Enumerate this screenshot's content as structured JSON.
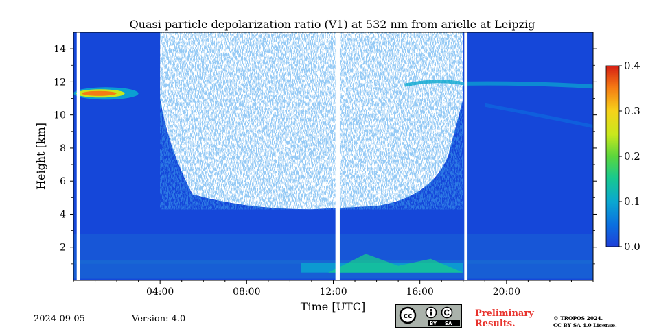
{
  "chart_data": {
    "type": "heatmap",
    "title": "Quasi particle depolarization ratio (V1) at 532 nm from arielle at Leipzig",
    "xlabel": "Time [UTC]",
    "ylabel": "Height [km]",
    "x_range_hours": [
      0,
      24
    ],
    "ylim": [
      0,
      15
    ],
    "x_ticks": [
      {
        "hour": 4,
        "label": "04:00"
      },
      {
        "hour": 8,
        "label": "08:00"
      },
      {
        "hour": 12,
        "label": "12:00"
      },
      {
        "hour": 16,
        "label": "16:00"
      },
      {
        "hour": 20,
        "label": "20:00"
      }
    ],
    "y_ticks": [
      2,
      4,
      6,
      8,
      10,
      12,
      14
    ],
    "colorbar": {
      "vmin": 0.0,
      "vmax": 0.4,
      "ticks": [
        "0.0",
        "0.1",
        "0.2",
        "0.3",
        "0.4"
      ],
      "colormap": [
        "#1f3fd8",
        "#0b6fe0",
        "#0aa8d0",
        "#17c98f",
        "#5bd63c",
        "#c8e81d",
        "#f6d21a",
        "#f57b14",
        "#d61f14"
      ]
    },
    "background_value": 0.02,
    "no_data_gaps_hours": [
      [
        0.15,
        0.3
      ],
      [
        12.1,
        12.3
      ],
      [
        18.05,
        18.2
      ]
    ],
    "no_signal_region": {
      "start_hour": 4.0,
      "end_hour": 18.0,
      "bottom_km_min": 4.3,
      "top_km": 15
    },
    "features": [
      {
        "label": "aerosol layer",
        "hour_start": 0.0,
        "hour_end": 3.0,
        "height_km": 11.3,
        "value": 0.35
      },
      {
        "label": "cirrus",
        "hour_start": 15.5,
        "hour_end": 24.0,
        "height_km": 11.8,
        "value": 0.1
      },
      {
        "label": "boundary layer",
        "hour_start": 10.5,
        "hour_end": 18.0,
        "height_km": 0.8,
        "value": 0.15
      }
    ]
  },
  "footer": {
    "date": "2024-09-05",
    "version": "Version: 4.0",
    "preliminary_line1": "Preliminary",
    "preliminary_line2": "Results.",
    "copyright_line1": "© TROPOS 2024.",
    "copyright_line2": "CC BY SA 4.0 License.",
    "license_badge": {
      "by": "BY",
      "sa": "SA"
    }
  }
}
